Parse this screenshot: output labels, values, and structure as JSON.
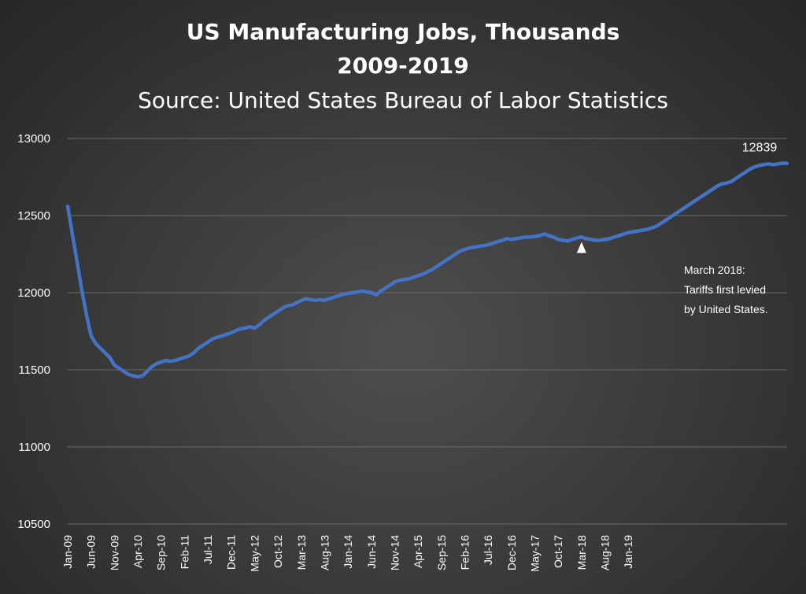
{
  "chart_data": {
    "type": "line",
    "title": "US Manufacturing Jobs, Thousands",
    "subtitle_years": "2009-2019",
    "source": "Source: United States Bureau of Labor Statistics",
    "ylim": [
      10500,
      13000
    ],
    "yticks": [
      10500,
      11000,
      11500,
      12000,
      12500,
      13000
    ],
    "grid": true,
    "x_tick_labels": [
      "Jan-09",
      "Jun-09",
      "Nov-09",
      "Apr-10",
      "Sep-10",
      "Feb-11",
      "Jul-11",
      "Dec-11",
      "May-12",
      "Oct-12",
      "Mar-13",
      "Aug-13",
      "Jan-14",
      "Jun-14",
      "Nov-14",
      "Apr-15",
      "Sep-15",
      "Feb-16",
      "Jul-16",
      "Dec-16",
      "May-17",
      "Oct-17",
      "Mar-18",
      "Aug-18",
      "Jan-19"
    ],
    "x_start": "Jan-09",
    "x_end": "Dec-19",
    "series": [
      {
        "values": [
          12560,
          12380,
          12200,
          12020,
          11860,
          11720,
          11670,
          11640,
          11610,
          11580,
          11530,
          11510,
          11490,
          11470,
          11460,
          11455,
          11460,
          11490,
          11520,
          11540,
          11550,
          11560,
          11555,
          11560,
          11570,
          11580,
          11590,
          11610,
          11640,
          11660,
          11680,
          11700,
          11710,
          11720,
          11730,
          11740,
          11755,
          11765,
          11770,
          11780,
          11770,
          11790,
          11820,
          11840,
          11860,
          11880,
          11900,
          11915,
          11920,
          11935,
          11950,
          11960,
          11955,
          11950,
          11955,
          11950,
          11960,
          11970,
          11980,
          11990,
          11995,
          12000,
          12005,
          12010,
          12005,
          12000,
          11985,
          12010,
          12030,
          12050,
          12070,
          12080,
          12085,
          12090,
          12100,
          12110,
          12120,
          12135,
          12150,
          12170,
          12190,
          12210,
          12230,
          12250,
          12270,
          12280,
          12290,
          12295,
          12300,
          12305,
          12310,
          12320,
          12330,
          12340,
          12350,
          12345,
          12350,
          12355,
          12360,
          12360,
          12365,
          12370,
          12380,
          12370,
          12360,
          12345,
          12340,
          12335,
          12345,
          12355,
          12360,
          12350,
          12345,
          12340,
          12340,
          12345,
          12350,
          12360,
          12370,
          12380,
          12390,
          12395,
          12400,
          12405,
          12410,
          12420,
          12430,
          12450,
          12470,
          12490,
          12510,
          12530,
          12550,
          12570,
          12590,
          12610,
          12630,
          12650,
          12670,
          12690,
          12705,
          12710,
          12720,
          12740,
          12760,
          12780,
          12800,
          12815,
          12825,
          12830,
          12835,
          12830,
          12835,
          12840,
          12839
        ]
      }
    ],
    "end_label": "12839",
    "annotation": {
      "lines": [
        "March 2018:",
        "Tariffs first levied",
        "by United States."
      ],
      "x": "Mar-18"
    },
    "colors": {
      "line": "#4472c4",
      "text": "#ffffff",
      "grid": "#6a6a6a"
    }
  }
}
